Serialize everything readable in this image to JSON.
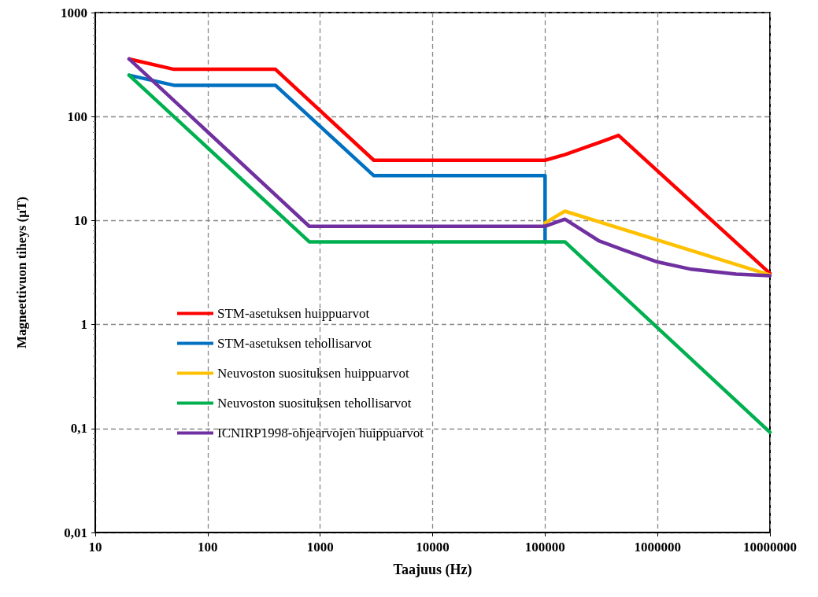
{
  "chart_data": {
    "type": "line",
    "xlabel": "Taajuus (Hz)",
    "ylabel": "Magneettivuon tiheys (µT)",
    "log": "xy",
    "grid": true,
    "legend": "left",
    "marker": "none",
    "line_style": "solid",
    "xlim": [
      10,
      10000000
    ],
    "xticks": [
      10,
      100,
      1000,
      10000,
      100000,
      1000000,
      10000000
    ],
    "ylim": [
      0.01,
      1000
    ],
    "yticks": [
      {
        "value": 0.01,
        "label": "0,01"
      },
      {
        "value": 0.1,
        "label": "0,1"
      },
      1,
      10,
      100,
      1000
    ],
    "series": [
      {
        "name": "STM-asetuksen huippuarvot",
        "color": "#ff0000",
        "x": [
          20,
          50,
          400,
          3000,
          100000,
          150000,
          300000,
          450000,
          10000000
        ],
        "values": [
          358,
          285,
          285,
          38,
          38,
          43,
          56,
          66,
          3.1
        ]
      },
      {
        "name": "STM-asetuksen tehollisarvot",
        "color": "#0070c0",
        "x": [
          20,
          50,
          400,
          3000,
          100000,
          100000
        ],
        "values": [
          250,
          200,
          200,
          27,
          27,
          6.25
        ]
      },
      {
        "name": "Neuvoston suosituksen huippuarvot",
        "color": "#ffc000",
        "x": [
          100000,
          150000,
          10000000
        ],
        "values": [
          9.5,
          12.3,
          3.0
        ]
      },
      {
        "name": "Neuvoston suosituksen tehollisarvot",
        "color": "#00b050",
        "x": [
          20,
          800,
          150000,
          10000000
        ],
        "values": [
          250,
          6.25,
          6.25,
          0.092
        ]
      },
      {
        "name": "ICNIRP1998-ohjearvojen huippuarvot",
        "color": "#7030a0",
        "x": [
          20,
          800,
          100000,
          150000,
          300000,
          500000,
          1000000,
          2000000,
          5000000,
          10000000
        ],
        "values": [
          358,
          8.8,
          8.8,
          10.3,
          6.4,
          5.2,
          4.0,
          3.4,
          3.05,
          2.95
        ]
      }
    ]
  }
}
